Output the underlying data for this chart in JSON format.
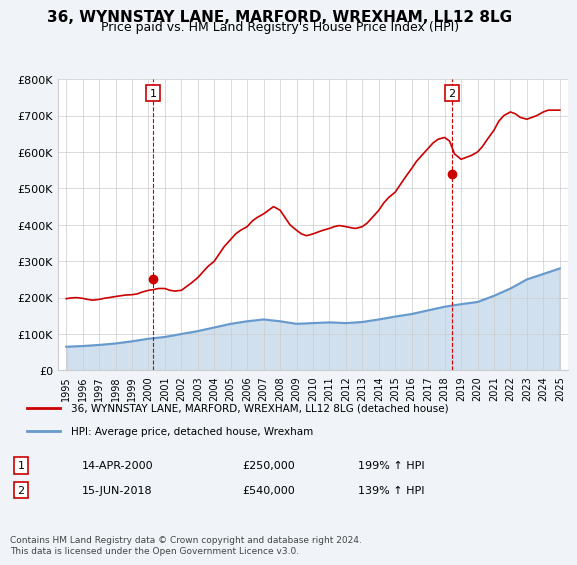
{
  "title": "36, WYNNSTAY LANE, MARFORD, WREXHAM, LL12 8LG",
  "subtitle": "Price paid vs. HM Land Registry's House Price Index (HPI)",
  "legend_line1": "36, WYNNSTAY LANE, MARFORD, WREXHAM, LL12 8LG (detached house)",
  "legend_line2": "HPI: Average price, detached house, Wrexham",
  "footnote": "Contains HM Land Registry data © Crown copyright and database right 2024.\nThis data is licensed under the Open Government Licence v3.0.",
  "sale1_label": "1",
  "sale1_date": "14-APR-2000",
  "sale1_price": "£250,000",
  "sale1_hpi": "199% ↑ HPI",
  "sale2_label": "2",
  "sale2_date": "15-JUN-2018",
  "sale2_price": "£540,000",
  "sale2_hpi": "139% ↑ HPI",
  "hpi_color": "#6699cc",
  "price_color": "#cc0000",
  "marker_color": "#cc0000",
  "background_color": "#f0f4f8",
  "plot_bg_color": "#ffffff",
  "ylim": [
    0,
    800000
  ],
  "yticks": [
    0,
    100000,
    200000,
    300000,
    400000,
    500000,
    600000,
    700000,
    800000
  ],
  "ytick_labels": [
    "£0",
    "£100K",
    "£200K",
    "£300K",
    "£400K",
    "£500K",
    "£600K",
    "£700K",
    "£800K"
  ],
  "years": [
    1995,
    1996,
    1997,
    1998,
    1999,
    2000,
    2001,
    2002,
    2003,
    2004,
    2005,
    2006,
    2007,
    2008,
    2009,
    2010,
    2011,
    2012,
    2013,
    2014,
    2015,
    2016,
    2017,
    2018,
    2019,
    2020,
    2021,
    2022,
    2023,
    2024,
    2025
  ],
  "hpi_values": [
    65000,
    67000,
    70000,
    74000,
    80000,
    87000,
    92000,
    100000,
    108000,
    118000,
    128000,
    135000,
    140000,
    135000,
    128000,
    130000,
    132000,
    130000,
    133000,
    140000,
    148000,
    155000,
    165000,
    175000,
    182000,
    188000,
    205000,
    225000,
    250000,
    265000,
    280000
  ],
  "price_data_x": [
    1995.0,
    1995.3,
    1995.6,
    1996.0,
    1996.3,
    1996.6,
    1997.0,
    1997.3,
    1997.6,
    1998.0,
    1998.3,
    1998.6,
    1999.0,
    1999.3,
    1999.6,
    2000.0,
    2000.3,
    2000.6,
    2001.0,
    2001.3,
    2001.6,
    2002.0,
    2002.3,
    2002.6,
    2003.0,
    2003.3,
    2003.6,
    2004.0,
    2004.3,
    2004.6,
    2005.0,
    2005.3,
    2005.6,
    2006.0,
    2006.3,
    2006.6,
    2007.0,
    2007.3,
    2007.6,
    2008.0,
    2008.3,
    2008.6,
    2009.0,
    2009.3,
    2009.6,
    2010.0,
    2010.3,
    2010.6,
    2011.0,
    2011.3,
    2011.6,
    2012.0,
    2012.3,
    2012.6,
    2013.0,
    2013.3,
    2013.6,
    2014.0,
    2014.3,
    2014.6,
    2015.0,
    2015.3,
    2015.6,
    2016.0,
    2016.3,
    2016.6,
    2017.0,
    2017.3,
    2017.6,
    2018.0,
    2018.3,
    2018.6,
    2019.0,
    2019.3,
    2019.6,
    2020.0,
    2020.3,
    2020.6,
    2021.0,
    2021.3,
    2021.6,
    2022.0,
    2022.3,
    2022.6,
    2023.0,
    2023.3,
    2023.6,
    2024.0,
    2024.3,
    2024.6,
    2025.0
  ],
  "price_values": [
    197000,
    199000,
    200000,
    198000,
    195000,
    193000,
    195000,
    198000,
    200000,
    203000,
    205000,
    207000,
    208000,
    210000,
    215000,
    220000,
    222000,
    225000,
    225000,
    220000,
    218000,
    220000,
    230000,
    240000,
    255000,
    270000,
    285000,
    300000,
    320000,
    340000,
    360000,
    375000,
    385000,
    395000,
    410000,
    420000,
    430000,
    440000,
    450000,
    440000,
    420000,
    400000,
    385000,
    375000,
    370000,
    375000,
    380000,
    385000,
    390000,
    395000,
    398000,
    395000,
    392000,
    390000,
    395000,
    405000,
    420000,
    440000,
    460000,
    475000,
    490000,
    510000,
    530000,
    555000,
    575000,
    590000,
    610000,
    625000,
    635000,
    640000,
    630000,
    595000,
    580000,
    585000,
    590000,
    600000,
    615000,
    635000,
    660000,
    685000,
    700000,
    710000,
    705000,
    695000,
    690000,
    695000,
    700000,
    710000,
    715000,
    715000,
    715000
  ],
  "sale1_x": 2000.288,
  "sale1_y": 250000,
  "sale2_x": 2018.458,
  "sale2_y": 540000,
  "xlim_left": 1994.5,
  "xlim_right": 2025.5
}
